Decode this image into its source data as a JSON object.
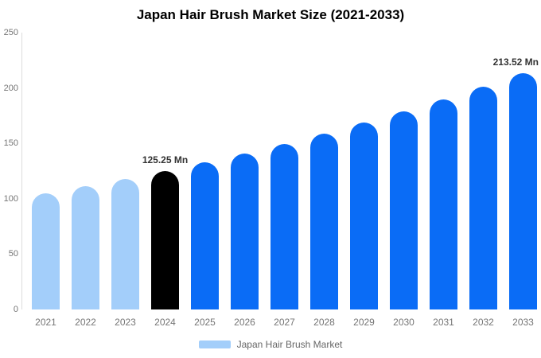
{
  "chart_data": {
    "type": "bar",
    "title": "Japan Hair Brush Market Size (2021-2033)",
    "categories": [
      "2021",
      "2022",
      "2023",
      "2024",
      "2025",
      "2026",
      "2027",
      "2028",
      "2029",
      "2030",
      "2031",
      "2032",
      "2033"
    ],
    "values": [
      104.8,
      111.2,
      118.0,
      125.25,
      132.9,
      141.0,
      149.6,
      158.8,
      168.5,
      178.8,
      189.7,
      201.3,
      213.52
    ],
    "unit": "Mn",
    "xlabel": "",
    "ylabel": "",
    "ylim": [
      0,
      250
    ],
    "yticks": [
      0,
      50,
      100,
      150,
      200,
      250
    ],
    "grid": false,
    "segments": [
      "past",
      "past",
      "past",
      "current",
      "forecast",
      "forecast",
      "forecast",
      "forecast",
      "forecast",
      "forecast",
      "forecast",
      "forecast",
      "forecast"
    ],
    "palette": {
      "past": "#A3CEFA",
      "current": "#000000",
      "forecast": "#0A6CF6"
    },
    "data_labels": [
      {
        "index": 3,
        "text": "125.25 Mn"
      },
      {
        "index": 12,
        "text": "213.52 Mn"
      }
    ],
    "legend": {
      "position": "bottom",
      "entries": [
        {
          "label": "Japan Hair Brush Market",
          "color": "#A3CEFA"
        }
      ]
    },
    "axis_colors": {
      "axis_line": "#dcdcdc",
      "tick_text": "#757575",
      "legend_text": "#666666",
      "value_label_text": "#333333"
    }
  }
}
